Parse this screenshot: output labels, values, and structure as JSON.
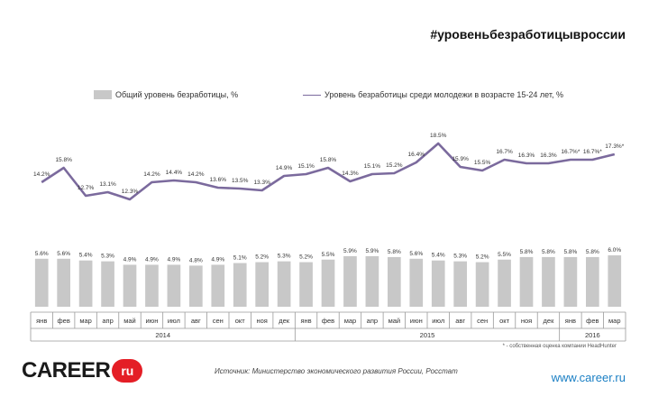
{
  "header": {
    "hashtag": "#уровеньбезработицывроссии"
  },
  "legend": {
    "bar_label": "Общий уровень безработицы, %",
    "line_label": "Уровень безработицы среди молодежи в возрасте 15-24 лет, %"
  },
  "chart_data": {
    "type": "bar",
    "categories": [
      "янв",
      "фев",
      "мар",
      "апр",
      "май",
      "июн",
      "июл",
      "авг",
      "сен",
      "окт",
      "ноя",
      "дек",
      "янв",
      "фев",
      "мар",
      "апр",
      "май",
      "июн",
      "июл",
      "авг",
      "сен",
      "окт",
      "ноя",
      "дек",
      "янв",
      "фев",
      "мар"
    ],
    "years": [
      {
        "label": "2014",
        "span": 12
      },
      {
        "label": "2015",
        "span": 12
      },
      {
        "label": "2016",
        "span": 3
      }
    ],
    "series": [
      {
        "name": "Общий уровень безработицы, %",
        "type": "bar",
        "color": "#c8c8c8",
        "values": [
          5.6,
          5.6,
          5.4,
          5.3,
          4.9,
          4.9,
          4.9,
          4.8,
          4.9,
          5.1,
          5.2,
          5.3,
          5.2,
          5.5,
          5.9,
          5.9,
          5.8,
          5.6,
          5.4,
          5.3,
          5.2,
          5.5,
          5.8,
          5.8,
          5.8,
          5.8,
          6.0
        ],
        "labels": [
          "5.6%",
          "5.6%",
          "5.4%",
          "5.3%",
          "4.9%",
          "4.9%",
          "4.9%",
          "4.8%",
          "4.9%",
          "5.1%",
          "5.2%",
          "5.3%",
          "5.2%",
          "5.5%",
          "5.9%",
          "5.9%",
          "5.8%",
          "5.6%",
          "5.4%",
          "5.3%",
          "5.2%",
          "5.5%",
          "5.8%",
          "5.8%",
          "5.8%",
          "5.8%",
          "6.0%"
        ]
      },
      {
        "name": "Уровень безработицы среди молодежи в возрасте 15-24 лет, %",
        "type": "line",
        "color": "#7b6a9d",
        "values": [
          14.2,
          15.8,
          12.7,
          13.1,
          12.3,
          14.2,
          14.4,
          14.2,
          13.6,
          13.5,
          13.3,
          14.9,
          15.1,
          15.8,
          14.3,
          15.1,
          15.2,
          16.4,
          18.5,
          15.9,
          15.5,
          16.7,
          16.3,
          16.3,
          16.7,
          16.7,
          17.3
        ],
        "labels": [
          "14.2%",
          "15.8%",
          "12.7%",
          "13.1%",
          "12.3%",
          "14.2%",
          "14.4%",
          "14.2%",
          "13.6%",
          "13.5%",
          "13.3%",
          "14.9%",
          "15.1%",
          "15.8%",
          "14.3%",
          "15.1%",
          "15.2%",
          "16.4%",
          "18.5%",
          "15.9%",
          "15.5%",
          "16.7%",
          "16.3%",
          "16.3%",
          "16.7%*",
          "16.7%*",
          "17.3%*"
        ]
      }
    ]
  },
  "footnote": "* - собственная оценка компании HeadHunter",
  "logo": {
    "text": "CAREER",
    "badge": "ru"
  },
  "source": "Источник: Министерство экономического развития России, Росстат",
  "site": "www.career.ru"
}
